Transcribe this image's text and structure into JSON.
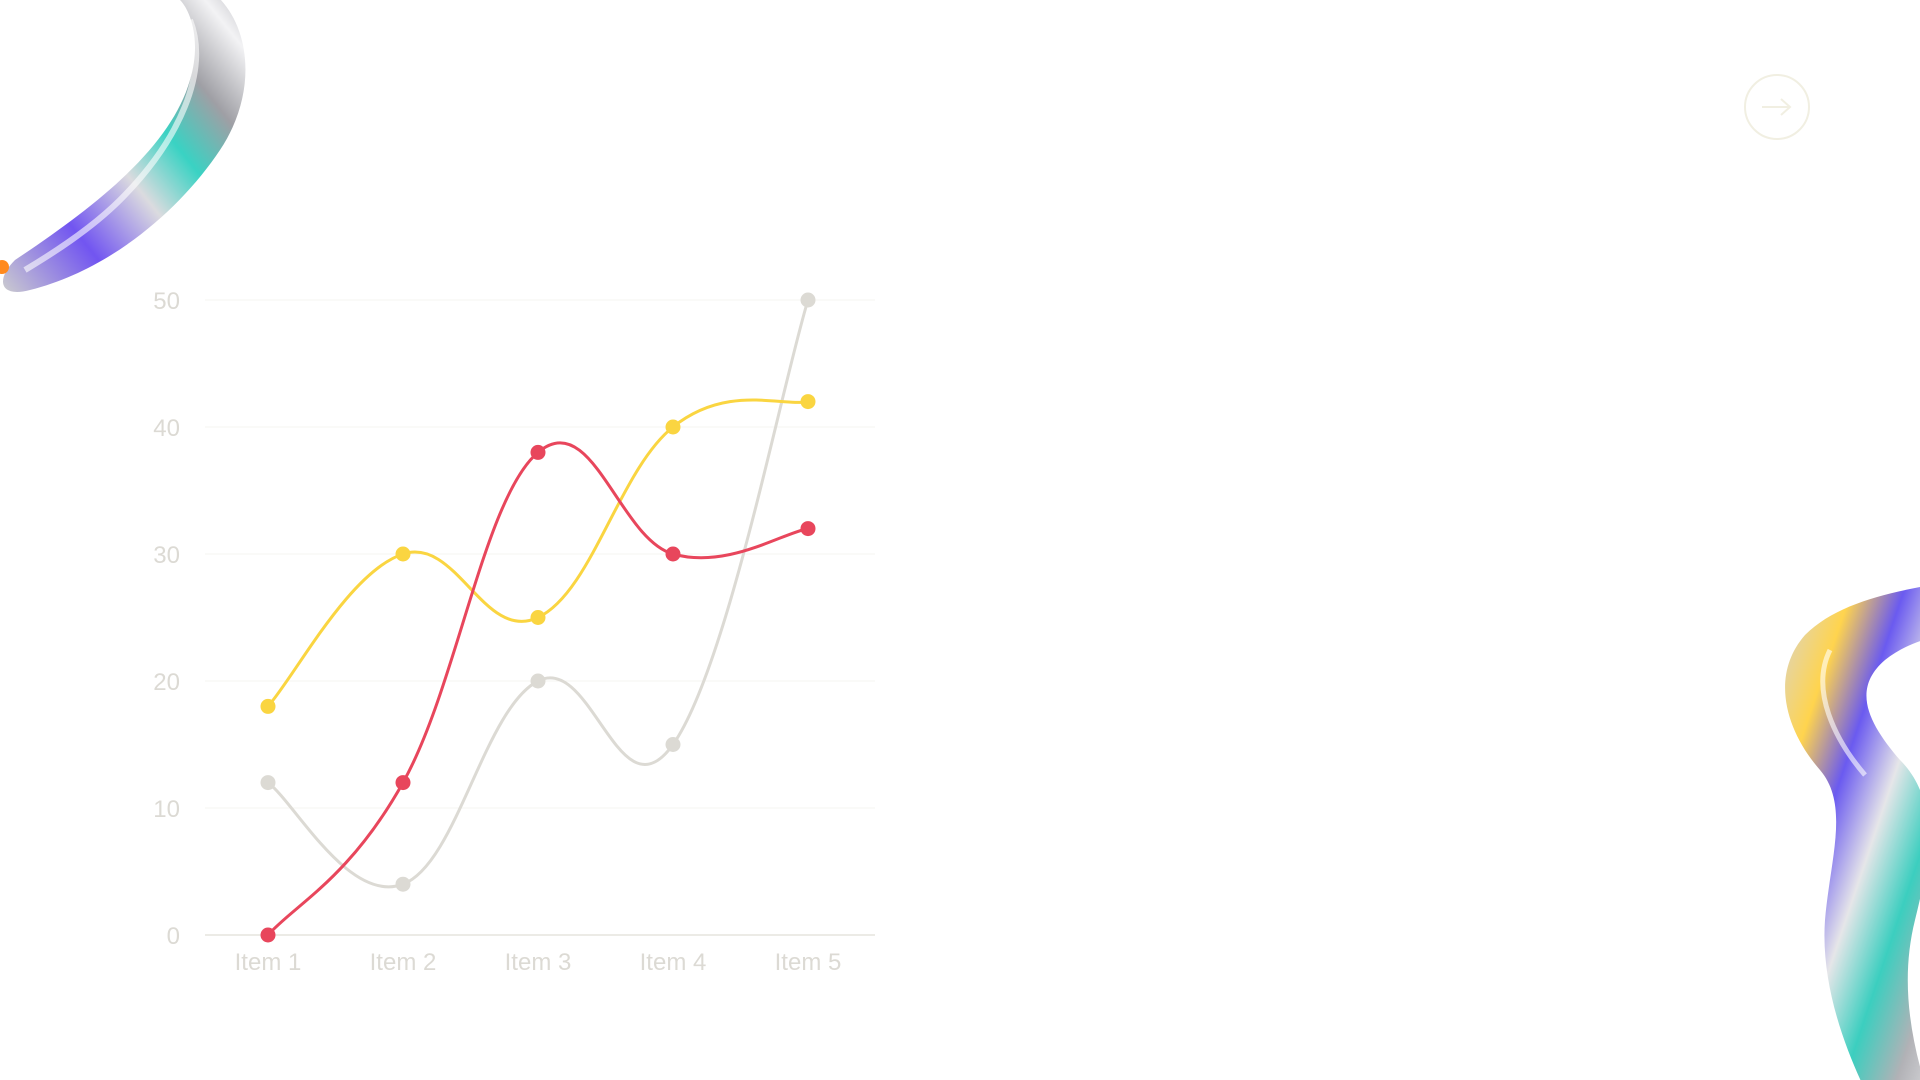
{
  "slide": {
    "next_icon": "arrow-right-icon",
    "accent_colors": [
      "#e8465c",
      "#fad541",
      "#dcdad4"
    ]
  },
  "chart_data": {
    "type": "line",
    "categories": [
      "Item 1",
      "Item 2",
      "Item 3",
      "Item 4",
      "Item 5"
    ],
    "series": [
      {
        "color": "#dcdad4",
        "values": [
          12,
          4,
          20,
          15,
          50
        ]
      },
      {
        "color": "#fad541",
        "values": [
          18,
          30,
          25,
          40,
          42
        ]
      },
      {
        "color": "#e8465c",
        "values": [
          0,
          12,
          38,
          30,
          32
        ]
      }
    ],
    "yticks": [
      0,
      10,
      20,
      30,
      40,
      50
    ],
    "ylim": [
      0,
      50
    ],
    "grid": true,
    "smooth": true,
    "title": "",
    "xlabel": "",
    "ylabel": ""
  }
}
